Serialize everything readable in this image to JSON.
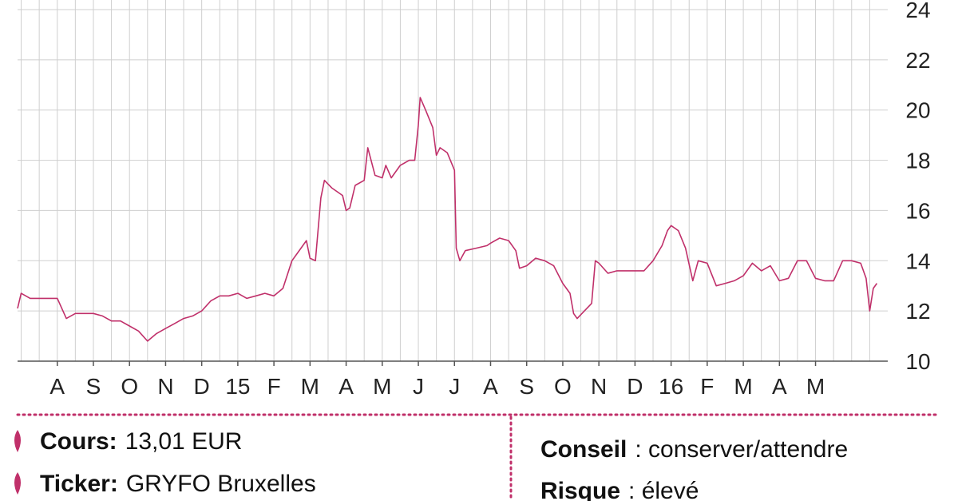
{
  "chart_data": {
    "type": "line",
    "x": [
      -1.1,
      -1.0,
      -0.75,
      -0.5,
      -0.25,
      0,
      0.25,
      0.5,
      0.75,
      1.0,
      1.25,
      1.5,
      1.75,
      2.0,
      2.25,
      2.5,
      2.75,
      3.0,
      3.25,
      3.5,
      3.75,
      4.0,
      4.25,
      4.5,
      4.75,
      5.0,
      5.25,
      5.5,
      5.75,
      6.0,
      6.25,
      6.5,
      6.75,
      6.9,
      7.0,
      7.15,
      7.3,
      7.4,
      7.6,
      7.9,
      8.0,
      8.1,
      8.25,
      8.5,
      8.6,
      8.8,
      9.0,
      9.1,
      9.25,
      9.5,
      9.75,
      9.9,
      10.0,
      10.05,
      10.2,
      10.4,
      10.5,
      10.6,
      10.8,
      11.0,
      11.05,
      11.15,
      11.3,
      11.6,
      11.9,
      12.0,
      12.25,
      12.5,
      12.7,
      12.8,
      13.0,
      13.25,
      13.5,
      13.75,
      14.0,
      14.2,
      14.3,
      14.4,
      14.6,
      14.8,
      14.9,
      15.0,
      15.25,
      15.5,
      15.75,
      16.0,
      16.25,
      16.5,
      16.75,
      16.9,
      17.0,
      17.2,
      17.4,
      17.6,
      17.75,
      18.0,
      18.25,
      18.5,
      18.75,
      19.0,
      19.25,
      19.5,
      19.75,
      20.0,
      20.25,
      20.5,
      20.75,
      21.0,
      21.25,
      21.5,
      21.75,
      22.0,
      22.25,
      22.4,
      22.5,
      22.6,
      22.7
    ],
    "values": [
      12.1,
      12.7,
      12.5,
      12.5,
      12.5,
      12.5,
      11.7,
      11.9,
      11.9,
      11.9,
      11.8,
      11.6,
      11.6,
      11.4,
      11.2,
      10.8,
      11.1,
      11.3,
      11.5,
      11.7,
      11.8,
      12.0,
      12.4,
      12.6,
      12.6,
      12.7,
      12.5,
      12.6,
      12.7,
      12.6,
      12.9,
      14.0,
      14.5,
      14.8,
      14.1,
      14.0,
      16.5,
      17.2,
      16.9,
      16.6,
      16.0,
      16.1,
      17.0,
      17.2,
      18.5,
      17.4,
      17.3,
      17.8,
      17.3,
      17.8,
      18.0,
      18.0,
      19.4,
      20.5,
      20.0,
      19.3,
      18.2,
      18.5,
      18.3,
      17.6,
      14.5,
      14.0,
      14.4,
      14.5,
      14.6,
      14.7,
      14.9,
      14.8,
      14.4,
      13.7,
      13.8,
      14.1,
      14.0,
      13.8,
      13.1,
      12.7,
      11.9,
      11.7,
      12.0,
      12.3,
      14.0,
      13.9,
      13.5,
      13.6,
      13.6,
      13.6,
      13.6,
      14.0,
      14.6,
      15.2,
      15.4,
      15.2,
      14.5,
      13.2,
      14.0,
      13.9,
      13.0,
      13.1,
      13.2,
      13.4,
      13.9,
      13.6,
      13.8,
      13.2,
      13.3,
      14.0,
      14.0,
      13.3,
      13.2,
      13.2,
      14.0,
      14.0,
      13.9,
      13.3,
      12.0,
      12.9,
      13.1
    ],
    "color": "#c0306a",
    "xlim": [
      -1.1,
      23
    ],
    "xticks": [
      {
        "value": 0,
        "label": "A"
      },
      {
        "value": 1,
        "label": "S"
      },
      {
        "value": 2,
        "label": "O"
      },
      {
        "value": 3,
        "label": "N"
      },
      {
        "value": 4,
        "label": "D"
      },
      {
        "value": 5,
        "label": "15"
      },
      {
        "value": 6,
        "label": "F"
      },
      {
        "value": 7,
        "label": "M"
      },
      {
        "value": 8,
        "label": "A"
      },
      {
        "value": 9,
        "label": "M"
      },
      {
        "value": 10,
        "label": "J"
      },
      {
        "value": 11,
        "label": "J"
      },
      {
        "value": 12,
        "label": "A"
      },
      {
        "value": 13,
        "label": "S"
      },
      {
        "value": 14,
        "label": "O"
      },
      {
        "value": 15,
        "label": "N"
      },
      {
        "value": 16,
        "label": "D"
      },
      {
        "value": 17,
        "label": "16"
      },
      {
        "value": 18,
        "label": "F"
      },
      {
        "value": 19,
        "label": "M"
      },
      {
        "value": 20,
        "label": "A"
      },
      {
        "value": 21,
        "label": "M"
      }
    ],
    "ylim": [
      10,
      24
    ],
    "yticks": [
      10,
      12,
      14,
      16,
      18,
      20,
      22,
      24
    ],
    "grid": true
  },
  "info": {
    "left": [
      {
        "label": "Cours:",
        "value": "13,01 EUR"
      },
      {
        "label": "Ticker:",
        "value": "GRYFO Bruxelles"
      }
    ],
    "right": [
      {
        "label": "Conseil",
        "value": ": conserver/attendre"
      },
      {
        "label": "Risque",
        "value": ": élevé"
      }
    ]
  }
}
